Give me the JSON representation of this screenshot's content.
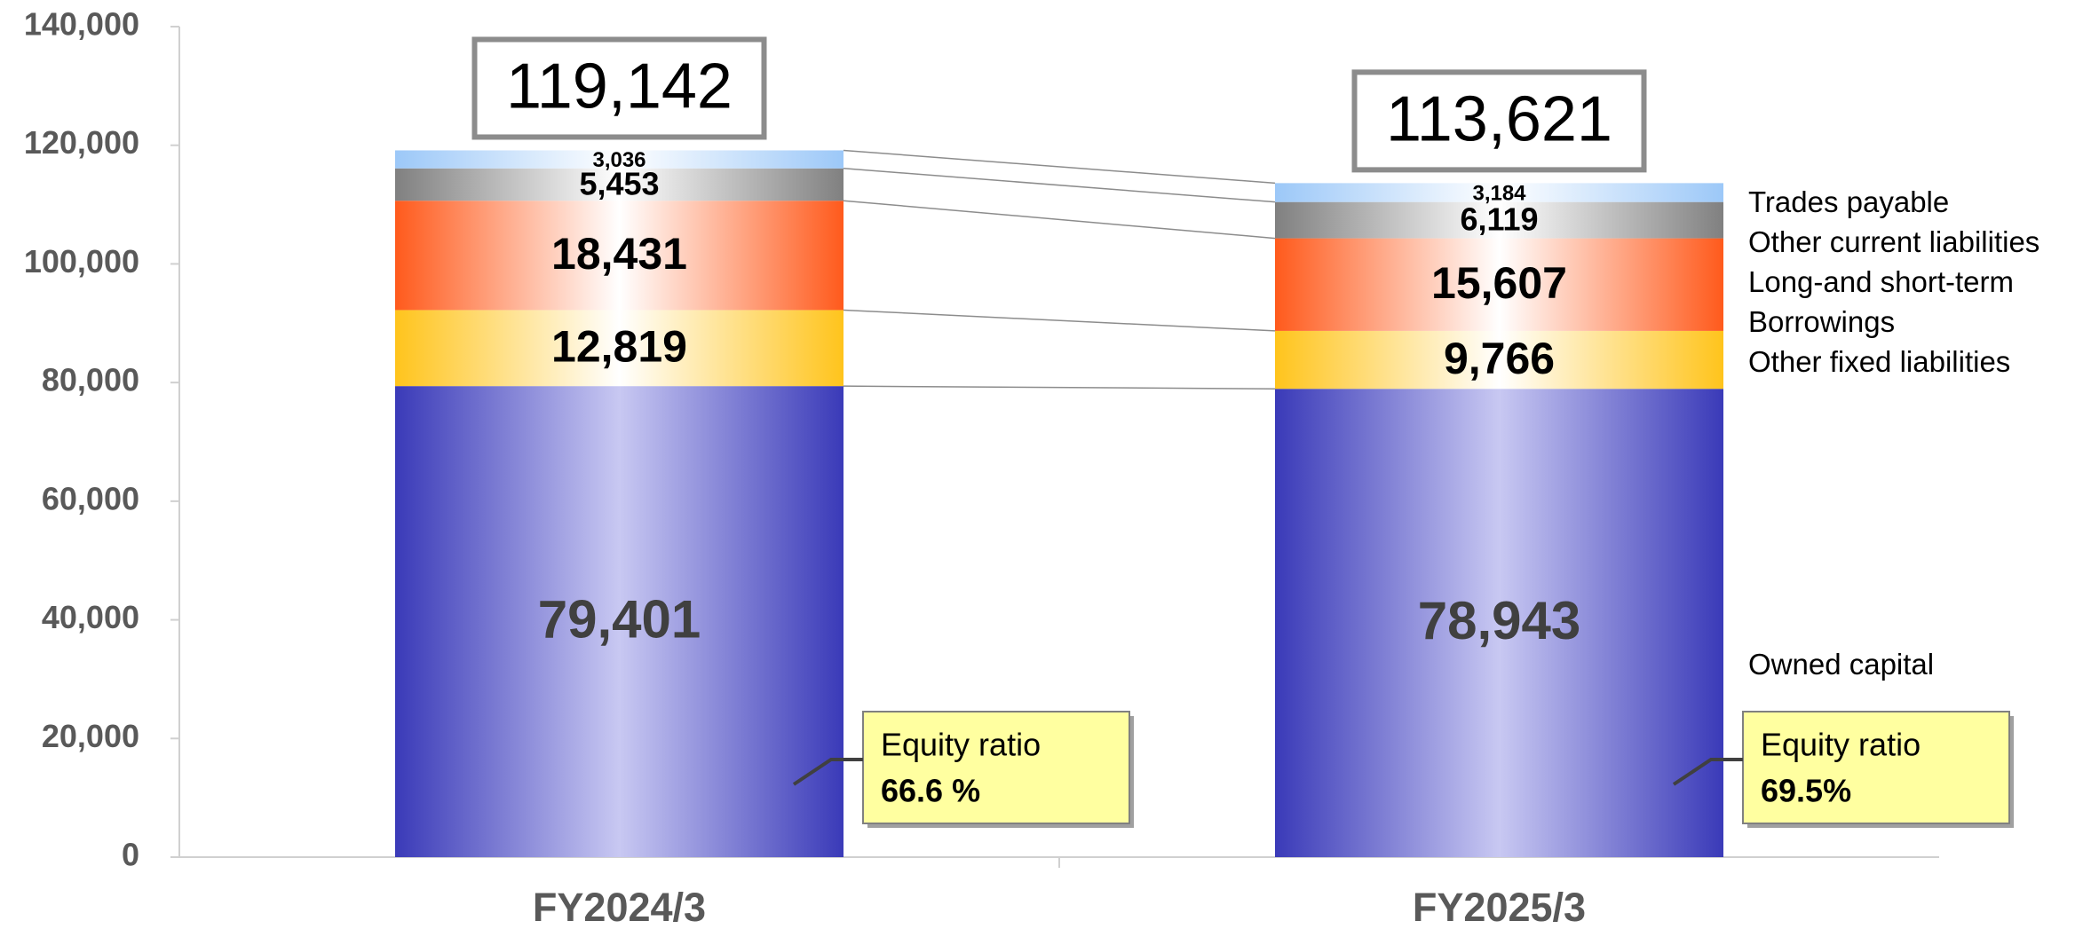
{
  "chart_data": {
    "type": "stacked_bar",
    "categories": [
      "FY2024/3",
      "FY2025/3"
    ],
    "series": [
      {
        "name": "Owned capital",
        "color": "#3a3ab8",
        "values": [
          79401,
          78943
        ],
        "value_labels": [
          "79,401",
          "78,943"
        ]
      },
      {
        "name": "Other fixed liabilities",
        "color": "#ffc41c",
        "values": [
          12819,
          9766
        ],
        "value_labels": [
          "12,819",
          "9,766"
        ]
      },
      {
        "name": "Long-and short-term Borrowings",
        "color": "#ff5a1c",
        "values": [
          18431,
          15607
        ],
        "value_labels": [
          "18,431",
          "15,607"
        ]
      },
      {
        "name": "Other current liabilities",
        "color": "#808080",
        "values": [
          5453,
          6119
        ],
        "value_labels": [
          "5,453",
          "6,119"
        ]
      },
      {
        "name": "Trades payable",
        "color": "#9cc8f8",
        "values": [
          3036,
          3184
        ],
        "value_labels": [
          "3,036",
          "3,184"
        ]
      }
    ],
    "totals": [
      119142,
      113621
    ],
    "total_labels": [
      "119,142",
      "113,621"
    ],
    "equity_ratio_title": "Equity ratio",
    "equity_ratios": [
      66.6,
      69.5
    ],
    "equity_ratio_labels": [
      "66.6 %",
      "69.5%"
    ],
    "ylim": [
      0,
      140000
    ],
    "yticks": [
      0,
      {
        "value": 20000,
        "label": "20,000"
      },
      {
        "value": 40000,
        "label": "40,000"
      },
      {
        "value": 60000,
        "label": "60,000"
      },
      {
        "value": 80000,
        "label": "80,000"
      },
      {
        "value": 100000,
        "label": "100,000"
      },
      {
        "value": 120000,
        "label": "120,000"
      },
      {
        "value": 140000,
        "label": "140,000"
      }
    ],
    "grid": false
  }
}
